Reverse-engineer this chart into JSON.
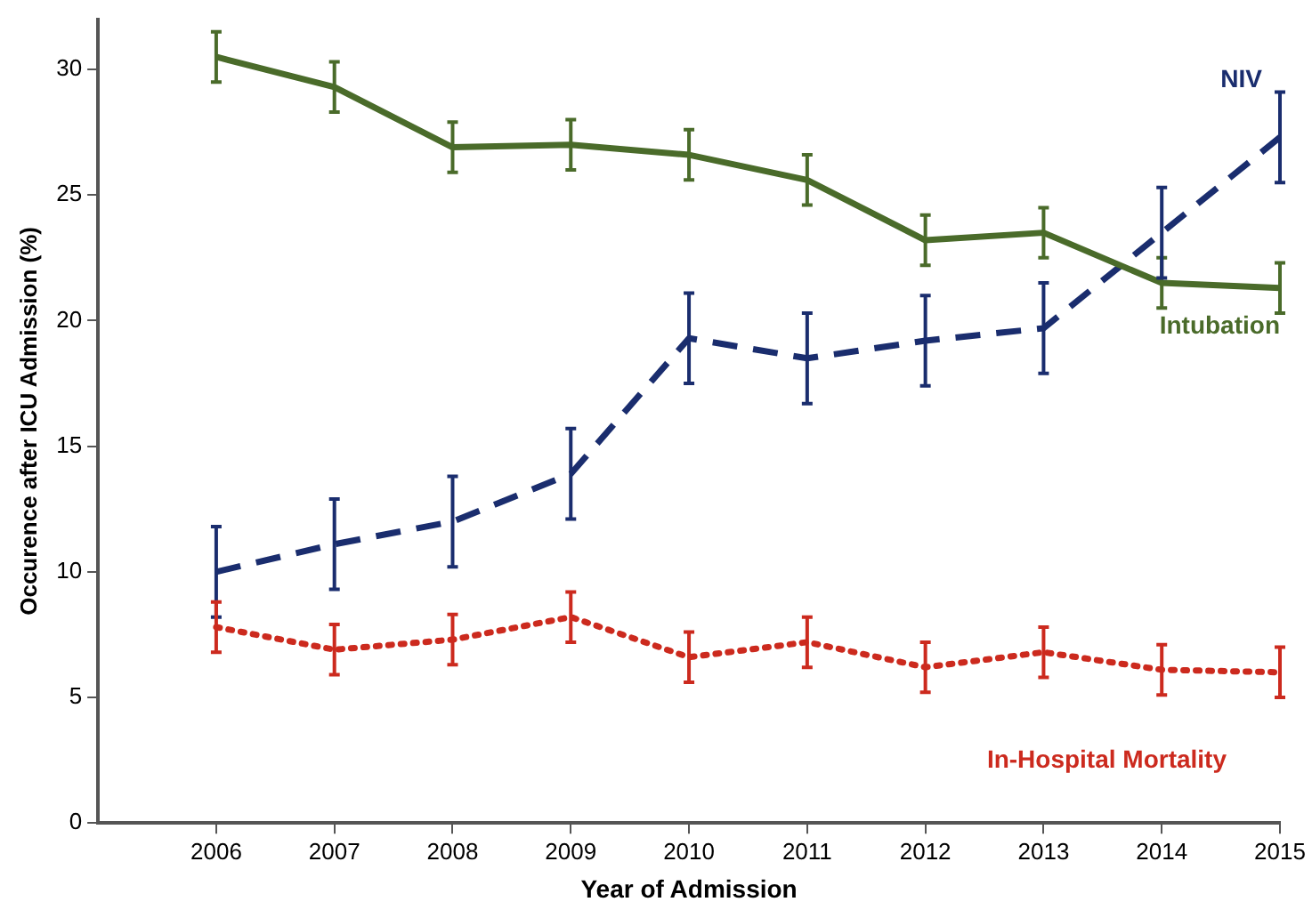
{
  "chart_data": {
    "type": "line",
    "xlabel": "Year of Admission",
    "ylabel": "Occurence after ICU Admission (%)",
    "x": [
      2006,
      2007,
      2008,
      2009,
      2010,
      2011,
      2012,
      2013,
      2014,
      2015
    ],
    "xlim": [
      2005,
      2015
    ],
    "xticks": [
      2006,
      2007,
      2008,
      2009,
      2010,
      2011,
      2012,
      2013,
      2014,
      2015
    ],
    "ylim": [
      0,
      32
    ],
    "yticks": [
      0,
      5,
      10,
      15,
      20,
      25,
      30
    ],
    "series": [
      {
        "name": "Intubation",
        "color": "#4a6b2a",
        "line_style": "solid",
        "values": [
          30.5,
          29.3,
          26.9,
          27.0,
          26.6,
          25.6,
          23.2,
          23.5,
          21.5,
          21.3
        ],
        "errors": [
          1,
          1,
          1,
          1,
          1,
          1,
          1,
          1,
          1,
          1
        ]
      },
      {
        "name": "NIV",
        "color": "#1a2d6e",
        "line_style": "dashed",
        "values": [
          10.0,
          11.1,
          12.0,
          13.9,
          19.3,
          18.5,
          19.2,
          19.7,
          23.5,
          27.3
        ],
        "errors": [
          1.8,
          1.8,
          1.8,
          1.8,
          1.8,
          1.8,
          1.8,
          1.8,
          1.8,
          1.8
        ]
      },
      {
        "name": "In-Hospital Mortality",
        "color": "#cc2a1e",
        "line_style": "dotted",
        "values": [
          7.8,
          6.9,
          7.3,
          8.2,
          6.6,
          7.2,
          6.2,
          6.8,
          6.1,
          6.0
        ],
        "errors": [
          1,
          1,
          1,
          1,
          1,
          1,
          1,
          1,
          1,
          1
        ]
      }
    ],
    "marker": "none",
    "grid": false,
    "legend": false
  }
}
